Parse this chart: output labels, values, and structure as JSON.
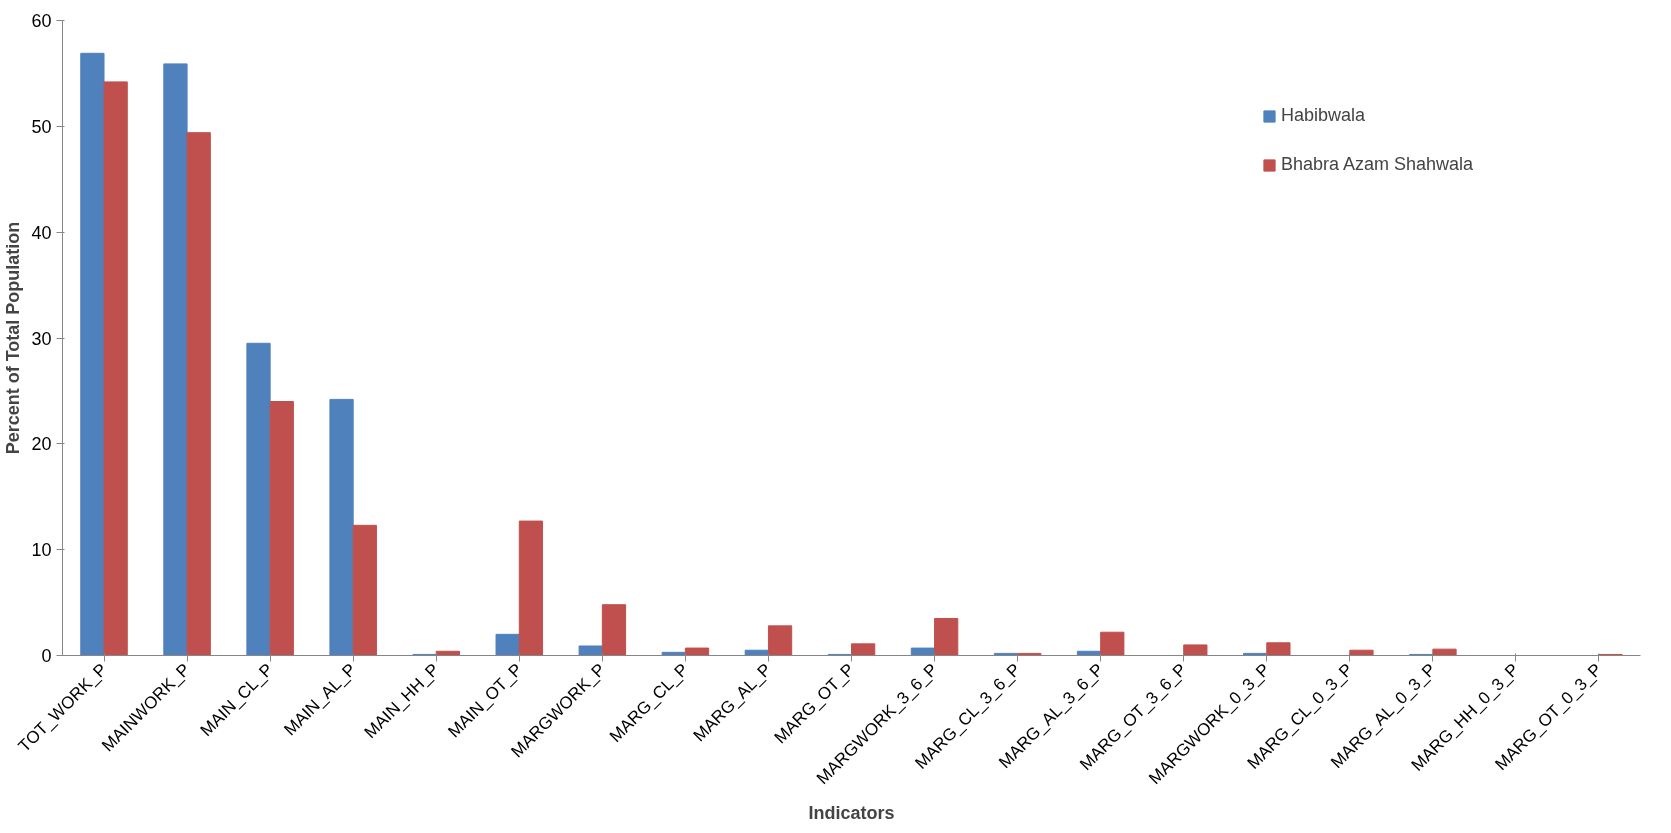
{
  "chart_data": {
    "type": "bar",
    "xlabel": "Indicators",
    "ylabel": "Percent of Total Population",
    "categories": [
      "TOT_WORK_P",
      "MAINWORK_P",
      "MAIN_CL_P",
      "MAIN_AL_P",
      "MAIN_HH_P",
      "MAIN_OT_P",
      "MARGWORK_P",
      "MARG_CL_P",
      "MARG_AL_P",
      "MARG_OT_P",
      "MARGWORK_3_6_P",
      "MARG_CL_3_6_P",
      "MARG_AL_3_6_P",
      "MARG_OT_3_6_P",
      "MARGWORK_0_3_P",
      "MARG_CL_0_3_P",
      "MARG_AL_0_3_P",
      "MARG_HH_0_3_P",
      "MARG_OT_0_3_P"
    ],
    "series": [
      {
        "name": "Habibwala",
        "color": "#4f81bd",
        "values": [
          56.9,
          55.9,
          29.5,
          24.2,
          0.1,
          2.0,
          0.9,
          0.3,
          0.5,
          0.1,
          0.7,
          0.2,
          0.4,
          0.0,
          0.2,
          0.0,
          0.1,
          0.0,
          0.0
        ]
      },
      {
        "name": "Bhabra Azam Shahwala",
        "color": "#c0504d",
        "values": [
          54.2,
          49.4,
          24.0,
          12.3,
          0.4,
          12.7,
          4.8,
          0.7,
          2.8,
          1.1,
          3.5,
          0.2,
          2.2,
          1.0,
          1.2,
          0.5,
          0.6,
          0.0,
          0.1
        ]
      }
    ],
    "ylim": [
      0,
      60
    ],
    "yticks": [
      0,
      10,
      20,
      30,
      40,
      50,
      60
    ],
    "grid": false,
    "legend": "right"
  }
}
